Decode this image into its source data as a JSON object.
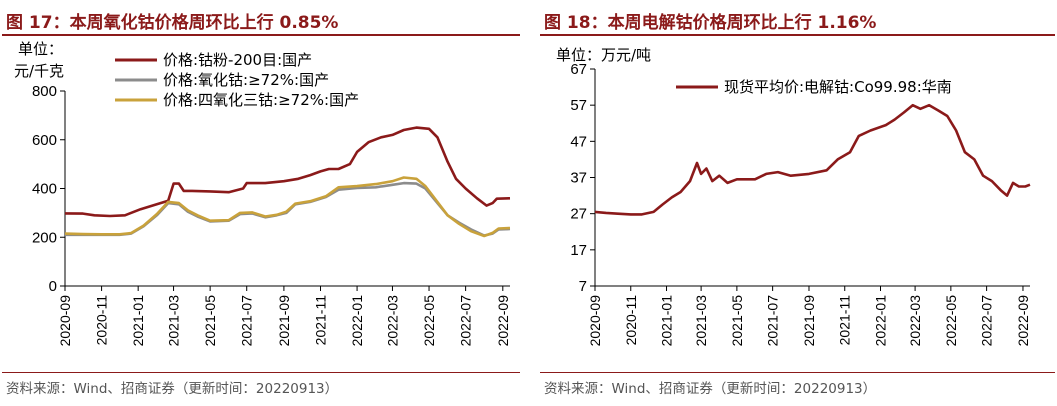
{
  "colors": {
    "dark_red": "#8B1A1A",
    "gray": "#8C8C8C",
    "gold": "#C9A23B",
    "axis": "#000000"
  },
  "chart_data": [
    {
      "type": "line",
      "title": "图 17：本周氧化钴价格周环比上行 0.85%",
      "unit_line1": "单位：",
      "unit_line2": "元/千克",
      "ylim": [
        0,
        800
      ],
      "yticks": [
        "800",
        "600",
        "400",
        "200",
        "0"
      ],
      "xlim": [
        "2020-09-01",
        "2022-09-13"
      ],
      "xticks": [
        "2020-09",
        "2020-11",
        "2021-01",
        "2021-03",
        "2021-05",
        "2021-07",
        "2021-09",
        "2021-11",
        "2022-01",
        "2022-03",
        "2022-05",
        "2022-07",
        "2022-09"
      ],
      "grid": false,
      "legend_position": "top-left",
      "source": "资料来源：Wind、招商证券（更新时间：20220913）",
      "series": [
        {
          "name": "价格:钴粉-200目:国产",
          "color": "#8B1A1A",
          "points": [
            [
              "2020-09-01",
              298
            ],
            [
              "2020-10-01",
              297
            ],
            [
              "2020-10-20",
              290
            ],
            [
              "2020-11-15",
              287
            ],
            [
              "2020-12-10",
              290
            ],
            [
              "2021-01-05",
              315
            ],
            [
              "2021-02-01",
              335
            ],
            [
              "2021-02-20",
              350
            ],
            [
              "2021-03-01",
              420
            ],
            [
              "2021-03-10",
              420
            ],
            [
              "2021-03-18",
              390
            ],
            [
              "2021-04-01",
              390
            ],
            [
              "2021-05-01",
              388
            ],
            [
              "2021-06-01",
              385
            ],
            [
              "2021-06-25",
              400
            ],
            [
              "2021-07-01",
              422
            ],
            [
              "2021-08-01",
              422
            ],
            [
              "2021-09-01",
              430
            ],
            [
              "2021-09-25",
              440
            ],
            [
              "2021-10-15",
              455
            ],
            [
              "2021-11-01",
              470
            ],
            [
              "2021-11-15",
              480
            ],
            [
              "2021-12-01",
              480
            ],
            [
              "2021-12-20",
              500
            ],
            [
              "2022-01-01",
              550
            ],
            [
              "2022-01-20",
              590
            ],
            [
              "2022-02-10",
              610
            ],
            [
              "2022-03-01",
              620
            ],
            [
              "2022-03-20",
              640
            ],
            [
              "2022-04-10",
              650
            ],
            [
              "2022-05-01",
              645
            ],
            [
              "2022-05-15",
              610
            ],
            [
              "2022-06-01",
              510
            ],
            [
              "2022-06-15",
              440
            ],
            [
              "2022-07-01",
              400
            ],
            [
              "2022-07-20",
              360
            ],
            [
              "2022-08-05",
              330
            ],
            [
              "2022-08-15",
              340
            ],
            [
              "2022-08-22",
              358
            ],
            [
              "2022-09-13",
              360
            ]
          ]
        },
        {
          "name": "价格:氧化钴:≥72%:国产",
          "color": "#8C8C8C",
          "points": [
            [
              "2020-09-01",
              210
            ],
            [
              "2020-10-01",
              210
            ],
            [
              "2020-11-01",
              210
            ],
            [
              "2020-12-01",
              210
            ],
            [
              "2020-12-20",
              215
            ],
            [
              "2021-01-10",
              245
            ],
            [
              "2021-02-01",
              290
            ],
            [
              "2021-02-20",
              340
            ],
            [
              "2021-03-10",
              335
            ],
            [
              "2021-03-25",
              305
            ],
            [
              "2021-04-10",
              285
            ],
            [
              "2021-05-01",
              265
            ],
            [
              "2021-06-01",
              268
            ],
            [
              "2021-06-20",
              295
            ],
            [
              "2021-07-10",
              298
            ],
            [
              "2021-08-01",
              282
            ],
            [
              "2021-08-20",
              290
            ],
            [
              "2021-09-05",
              300
            ],
            [
              "2021-09-20",
              335
            ],
            [
              "2021-10-15",
              345
            ],
            [
              "2021-11-10",
              365
            ],
            [
              "2021-12-01",
              395
            ],
            [
              "2022-01-01",
              402
            ],
            [
              "2022-02-01",
              405
            ],
            [
              "2022-03-01",
              415
            ],
            [
              "2022-03-20",
              422
            ],
            [
              "2022-04-10",
              420
            ],
            [
              "2022-04-25",
              400
            ],
            [
              "2022-05-15",
              340
            ],
            [
              "2022-06-01",
              290
            ],
            [
              "2022-06-20",
              260
            ],
            [
              "2022-07-10",
              232
            ],
            [
              "2022-08-01",
              207
            ],
            [
              "2022-08-15",
              215
            ],
            [
              "2022-08-25",
              232
            ],
            [
              "2022-09-13",
              234
            ]
          ]
        },
        {
          "name": "价格:四氧化三钴:≥72%:国产",
          "color": "#C9A23B",
          "points": [
            [
              "2020-09-01",
              215
            ],
            [
              "2020-10-01",
              213
            ],
            [
              "2020-11-01",
              212
            ],
            [
              "2020-12-01",
              212
            ],
            [
              "2020-12-20",
              217
            ],
            [
              "2021-01-10",
              248
            ],
            [
              "2021-02-01",
              295
            ],
            [
              "2021-02-20",
              345
            ],
            [
              "2021-03-10",
              340
            ],
            [
              "2021-03-25",
              310
            ],
            [
              "2021-04-10",
              290
            ],
            [
              "2021-05-01",
              268
            ],
            [
              "2021-06-01",
              270
            ],
            [
              "2021-06-20",
              300
            ],
            [
              "2021-07-10",
              302
            ],
            [
              "2021-08-01",
              285
            ],
            [
              "2021-08-20",
              292
            ],
            [
              "2021-09-05",
              305
            ],
            [
              "2021-09-20",
              338
            ],
            [
              "2021-10-15",
              348
            ],
            [
              "2021-11-10",
              368
            ],
            [
              "2021-12-01",
              405
            ],
            [
              "2022-01-01",
              410
            ],
            [
              "2022-02-01",
              418
            ],
            [
              "2022-03-01",
              430
            ],
            [
              "2022-03-20",
              445
            ],
            [
              "2022-04-10",
              440
            ],
            [
              "2022-04-25",
              410
            ],
            [
              "2022-05-15",
              345
            ],
            [
              "2022-06-01",
              290
            ],
            [
              "2022-06-20",
              255
            ],
            [
              "2022-07-10",
              225
            ],
            [
              "2022-08-01",
              205
            ],
            [
              "2022-08-15",
              218
            ],
            [
              "2022-08-25",
              236
            ],
            [
              "2022-09-13",
              238
            ]
          ]
        }
      ]
    },
    {
      "type": "line",
      "title": "图 18：本周电解钴价格周环比上行 1.16%",
      "unit_line1": "单位：万元/吨",
      "ylim": [
        7,
        67
      ],
      "yticks": [
        "67",
        "57",
        "47",
        "37",
        "27",
        "17",
        "7"
      ],
      "xlim": [
        "2020-09-01",
        "2022-09-13"
      ],
      "xticks": [
        "2020-09",
        "2020-11",
        "2021-01",
        "2021-03",
        "2021-05",
        "2021-07",
        "2021-09",
        "2021-11",
        "2022-01",
        "2022-03",
        "2022-05",
        "2022-07",
        "2022-09"
      ],
      "grid": false,
      "legend_position": "top-right",
      "source": "资料来源：Wind、招商证券（更新时间：20220913）",
      "series": [
        {
          "name": "现货平均价:电解钴:Co99.98:华南",
          "color": "#8B1A1A",
          "points": [
            [
              "2020-09-01",
              27.5
            ],
            [
              "2020-09-20",
              27.2
            ],
            [
              "2020-10-10",
              27.0
            ],
            [
              "2020-11-01",
              26.8
            ],
            [
              "2020-11-20",
              26.8
            ],
            [
              "2020-12-10",
              27.5
            ],
            [
              "2020-12-25",
              29.5
            ],
            [
              "2021-01-10",
              31.5
            ],
            [
              "2021-01-25",
              33.0
            ],
            [
              "2021-02-10",
              36.0
            ],
            [
              "2021-02-22",
              41.0
            ],
            [
              "2021-03-01",
              38.0
            ],
            [
              "2021-03-10",
              39.5
            ],
            [
              "2021-03-20",
              36.0
            ],
            [
              "2021-04-01",
              37.5
            ],
            [
              "2021-04-15",
              35.5
            ],
            [
              "2021-05-01",
              36.5
            ],
            [
              "2021-06-01",
              36.5
            ],
            [
              "2021-06-20",
              38.0
            ],
            [
              "2021-07-10",
              38.5
            ],
            [
              "2021-08-01",
              37.5
            ],
            [
              "2021-09-01",
              38.0
            ],
            [
              "2021-10-01",
              39.0
            ],
            [
              "2021-10-20",
              42.0
            ],
            [
              "2021-11-10",
              44.0
            ],
            [
              "2021-11-25",
              48.5
            ],
            [
              "2021-12-15",
              50.0
            ],
            [
              "2022-01-10",
              51.5
            ],
            [
              "2022-01-25",
              53.0
            ],
            [
              "2022-02-10",
              55.0
            ],
            [
              "2022-02-25",
              57.0
            ],
            [
              "2022-03-10",
              56.0
            ],
            [
              "2022-03-25",
              57.0
            ],
            [
              "2022-04-10",
              55.5
            ],
            [
              "2022-04-25",
              54.0
            ],
            [
              "2022-05-10",
              50.0
            ],
            [
              "2022-05-25",
              44.0
            ],
            [
              "2022-06-10",
              42.0
            ],
            [
              "2022-06-25",
              37.5
            ],
            [
              "2022-07-10",
              36.0
            ],
            [
              "2022-07-25",
              33.5
            ],
            [
              "2022-08-05",
              32.0
            ],
            [
              "2022-08-15",
              35.5
            ],
            [
              "2022-08-25",
              34.5
            ],
            [
              "2022-09-05",
              34.5
            ],
            [
              "2022-09-13",
              35.0
            ]
          ]
        }
      ]
    }
  ]
}
